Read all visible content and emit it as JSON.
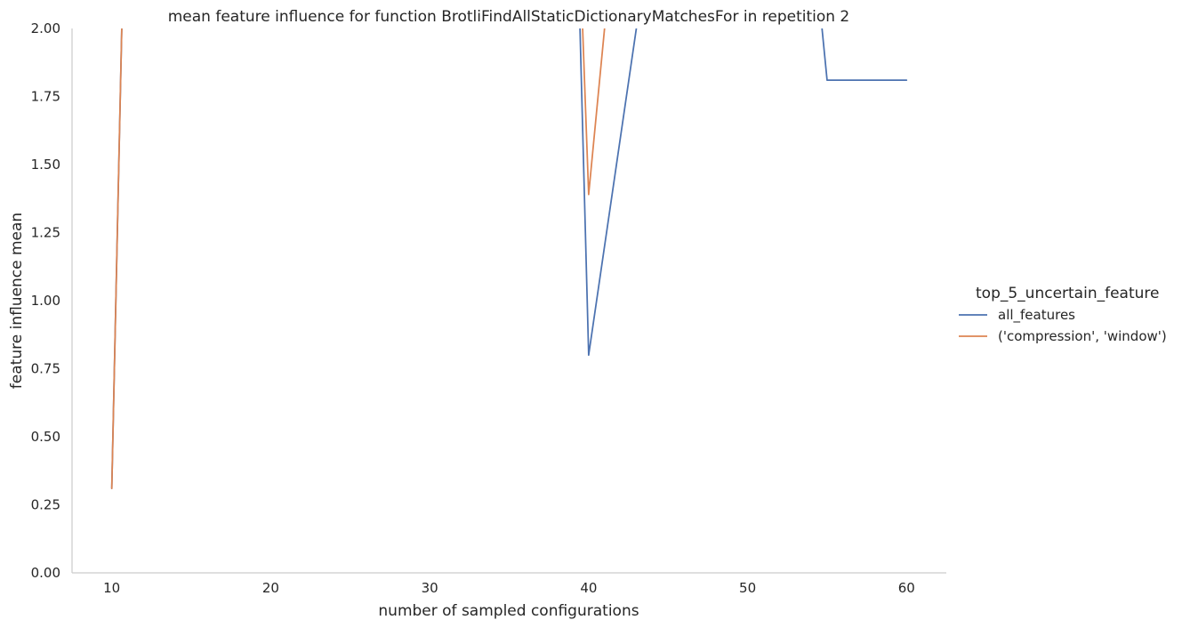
{
  "chart_data": {
    "type": "line",
    "title": "mean feature influence for function BrotliFindAllStaticDictionaryMatchesFor in repetition 2",
    "xlabel": "number of sampled configurations",
    "ylabel": "feature influence mean",
    "xlim": [
      7.5,
      62.5
    ],
    "ylim": [
      0,
      2.0
    ],
    "xticks": [
      10,
      20,
      30,
      40,
      50,
      60
    ],
    "yticks": [
      0.0,
      0.25,
      0.5,
      0.75,
      1.0,
      1.25,
      1.5,
      1.75,
      2.0
    ],
    "xtick_labels": [
      "10",
      "20",
      "30",
      "40",
      "50",
      "60"
    ],
    "ytick_labels": [
      "0.00",
      "0.25",
      "0.50",
      "0.75",
      "1.00",
      "1.25",
      "1.50",
      "1.75",
      "2.00"
    ],
    "grid": false,
    "legend": {
      "title": "top_5_uncertain_feature",
      "position": "right"
    },
    "series": [
      {
        "name": "all_features",
        "color": "#4c72b0",
        "points": [
          [
            10,
            0.31
          ],
          [
            11,
            3.0
          ],
          [
            39,
            3.0
          ],
          [
            40,
            0.8
          ],
          [
            41,
            1.2
          ],
          [
            42,
            1.6
          ],
          [
            43,
            2.0
          ],
          [
            45,
            3.0
          ],
          [
            53,
            3.0
          ],
          [
            55,
            1.81
          ],
          [
            60,
            1.81
          ]
        ]
      },
      {
        "name": "('compression', 'window')",
        "color": "#dd8452",
        "points": [
          [
            10,
            0.31
          ],
          [
            11,
            3.0
          ],
          [
            39,
            3.0
          ],
          [
            40,
            1.39
          ],
          [
            41,
            2.0
          ],
          [
            42,
            3.0
          ]
        ]
      }
    ]
  }
}
